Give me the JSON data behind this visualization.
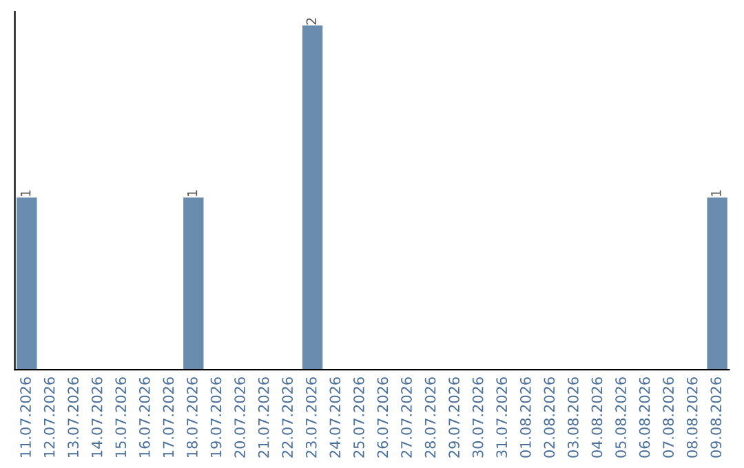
{
  "chart_data": {
    "type": "bar",
    "categories": [
      "11.07.2026",
      "12.07.2026",
      "13.07.2026",
      "14.07.2026",
      "15.07.2026",
      "16.07.2026",
      "17.07.2026",
      "18.07.2026",
      "19.07.2026",
      "20.07.2026",
      "21.07.2026",
      "22.07.2026",
      "23.07.2026",
      "24.07.2026",
      "25.07.2026",
      "26.07.2026",
      "27.07.2026",
      "28.07.2026",
      "29.07.2026",
      "30.07.2026",
      "31.07.2026",
      "01.08.2026",
      "02.08.2026",
      "03.08.2026",
      "04.08.2026",
      "05.08.2026",
      "06.08.2026",
      "07.08.2026",
      "08.08.2026",
      "09.08.2026"
    ],
    "values": [
      1,
      0,
      0,
      0,
      0,
      0,
      0,
      1,
      0,
      0,
      0,
      0,
      2,
      0,
      0,
      0,
      0,
      0,
      0,
      0,
      0,
      0,
      0,
      0,
      0,
      0,
      0,
      0,
      0,
      1
    ],
    "value_labels": [
      "1",
      null,
      null,
      null,
      null,
      null,
      null,
      "1",
      null,
      null,
      null,
      null,
      "2",
      null,
      null,
      null,
      null,
      null,
      null,
      null,
      null,
      null,
      null,
      null,
      null,
      null,
      null,
      null,
      null,
      "1"
    ],
    "color": "#6a8caf",
    "grid": false,
    "legend": false,
    "tick_labels": "x"
  }
}
